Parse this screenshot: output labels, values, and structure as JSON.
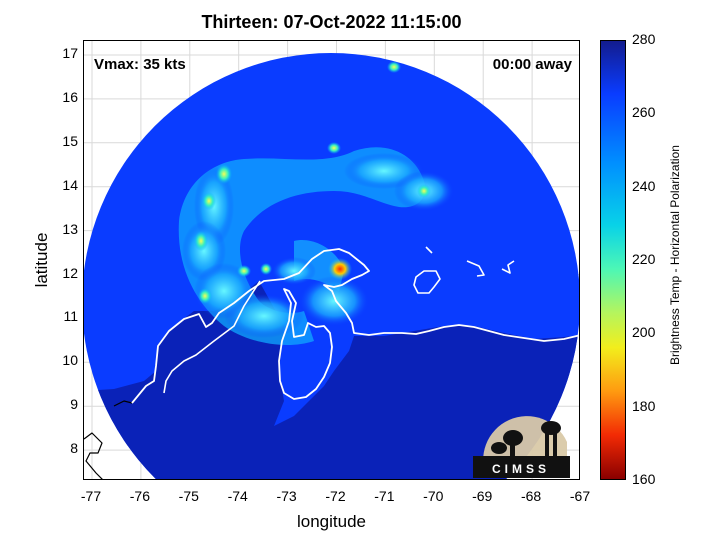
{
  "title": "Thirteen: 07-Oct-2022 11:15:00",
  "vmax_label": "Vmax: 35 kts",
  "away_label": "00:00 away",
  "x_axis": {
    "label": "longitude",
    "ticks": [
      "-77",
      "-76",
      "-75",
      "-74",
      "-73",
      "-72",
      "-71",
      "-70",
      "-69",
      "-68",
      "-67"
    ]
  },
  "y_axis": {
    "label": "latitude",
    "ticks": [
      "17",
      "16",
      "15",
      "14",
      "13",
      "12",
      "11",
      "10",
      "9",
      "8"
    ]
  },
  "colorbar": {
    "label": "Brightness Temp - Horizontal Polarization",
    "ticks": [
      "280",
      "260",
      "240",
      "220",
      "200",
      "180",
      "160"
    ],
    "range": [
      160,
      280
    ],
    "colors": {
      "top": "#131c8e",
      "high": "#0a3cff",
      "mid_high": "#0090ff",
      "mid": "#4cf7b6",
      "mid_low": "#f2ee1c",
      "low": "#f22a04",
      "bottom": "#8a0000"
    }
  },
  "logo_text": "CIMSS",
  "map_colors": {
    "ocean": "#0a3cff",
    "land": "#0b20b8",
    "coastline": "#ffffff",
    "outside_coast": "#000000",
    "grid": "#d9d9d9"
  }
}
